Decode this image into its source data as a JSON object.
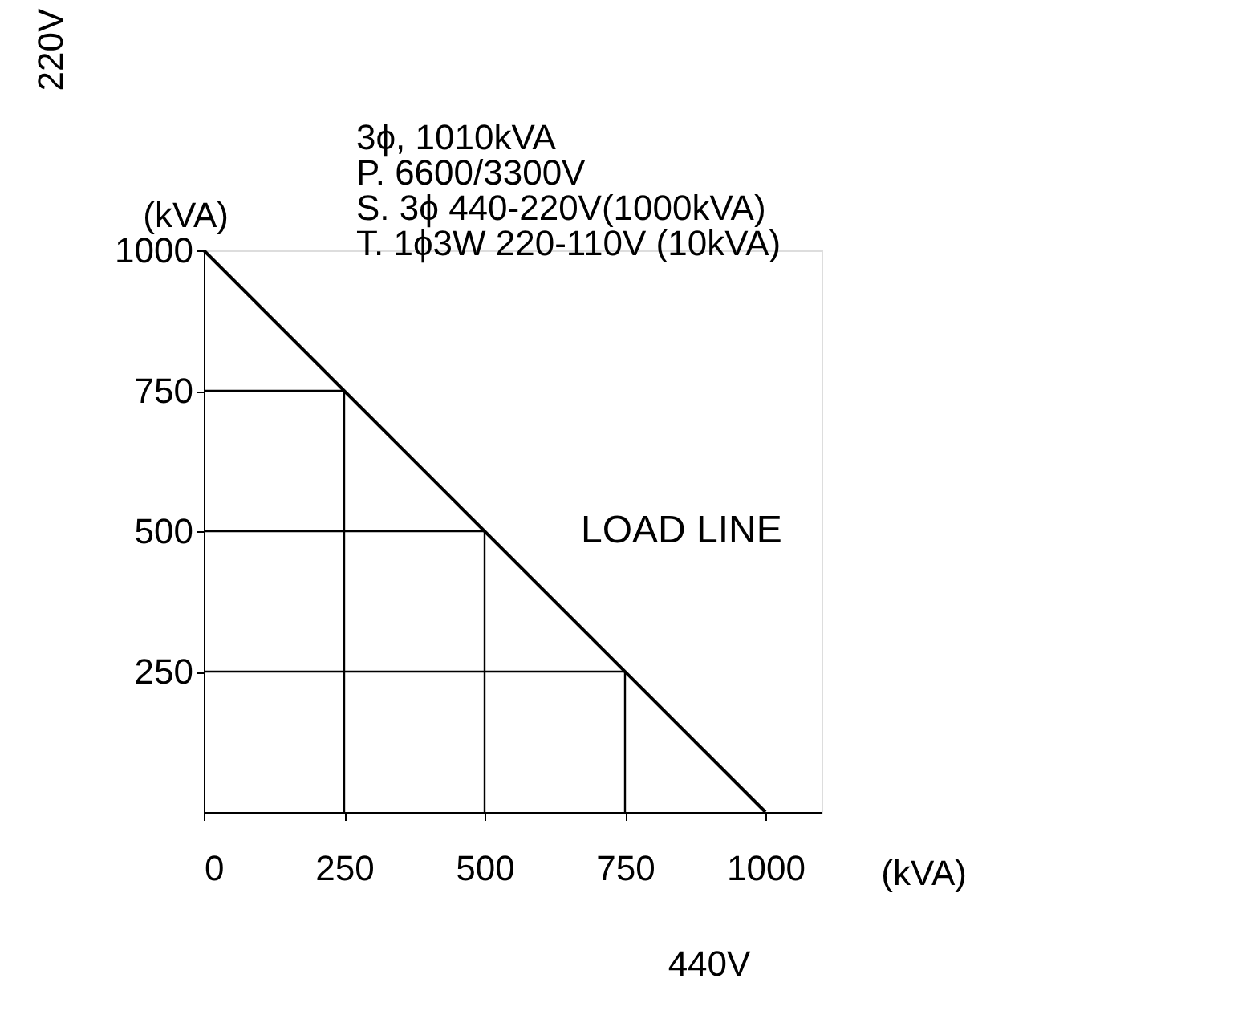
{
  "chart_data": {
    "type": "line",
    "xlabel": "(kVA)",
    "ylabel": "(kVA)",
    "x": [
      0,
      1000
    ],
    "series": [
      {
        "color": "#000000",
        "values": [
          1000,
          0
        ]
      },
      {
        "color": "#000000",
        "x": [
          0,
          250
        ],
        "values": [
          750,
          750
        ]
      },
      {
        "color": "#000000",
        "x": [
          0,
          500
        ],
        "values": [
          500,
          500
        ]
      },
      {
        "color": "#000000",
        "x": [
          0,
          750
        ],
        "values": [
          250,
          250
        ]
      },
      {
        "color": "#000000",
        "x": [
          250,
          250
        ],
        "values": [
          0,
          750
        ]
      },
      {
        "color": "#000000",
        "x": [
          500,
          500
        ],
        "values": [
          0,
          500
        ]
      },
      {
        "color": "#000000",
        "x": [
          750,
          750
        ],
        "values": [
          0,
          250
        ]
      }
    ],
    "xlim": [
      0,
      1100
    ],
    "ylim": [
      0,
      1000
    ],
    "xticks": [
      0,
      250,
      500,
      750,
      1000
    ],
    "yticks": [
      250,
      500,
      750,
      1000
    ],
    "marker": "none",
    "line_style": "solid",
    "annotations": [
      "220V",
      "440V",
      "3ϕ, 1010kVA",
      "P. 6600/3300V",
      "S. 3ϕ 440-220V(1000kVA)",
      "T. 1ϕ3W 220-110V (10kVA)",
      "LOAD LINE"
    ]
  }
}
